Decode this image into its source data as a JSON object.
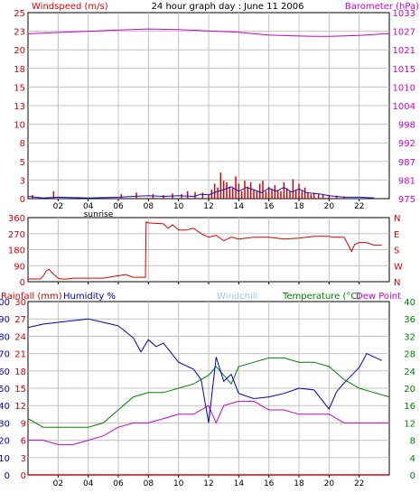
{
  "chart_data": [
    {
      "type": "line",
      "title": "24 hour graph day : June 11 2006",
      "left_label": "Windspeed (m/s)",
      "right_label": "Barometer (hPa)",
      "colors": {
        "wind": "#dd0000",
        "gust": "#1010c0",
        "baro": "#cc00cc",
        "grid": "#c0c0c0"
      },
      "x_ticks": [
        "02",
        "04",
        "06",
        "08",
        "10",
        "12",
        "14",
        "16",
        "18",
        "20",
        "22"
      ],
      "sunrise_label": "sunrise",
      "y_left_ticks": [
        "0",
        "3",
        "5",
        "8",
        "10",
        "13",
        "15",
        "18",
        "20",
        "23",
        "25"
      ],
      "y_left_range": [
        0,
        25
      ],
      "y_right_ticks": [
        "975",
        "981",
        "987",
        "992",
        "998",
        "1004",
        "1010",
        "1015",
        "1021",
        "1027",
        "1033"
      ],
      "y_right_range": [
        975,
        1033
      ],
      "barometer": {
        "x": [
          0,
          2,
          4,
          6,
          8,
          10,
          12,
          14,
          16,
          18,
          19,
          20,
          22,
          24
        ],
        "y": [
          1026.4,
          1026.8,
          1027.2,
          1027.6,
          1027.9,
          1027.7,
          1027.3,
          1026.9,
          1026.0,
          1025.7,
          1025.6,
          1025.6,
          1025.9,
          1026.5
        ]
      },
      "wind_bars": {
        "x": [
          0.3,
          1.7,
          6.2,
          7.2,
          8.3,
          9.0,
          9.6,
          10.2,
          10.6,
          11.1,
          11.6,
          12.0,
          12.2,
          12.4,
          12.6,
          12.8,
          13.0,
          13.2,
          13.4,
          13.6,
          13.8,
          14.0,
          14.2,
          14.4,
          14.6,
          14.8,
          15.0,
          15.2,
          15.4,
          15.6,
          15.8,
          16.0,
          16.2,
          16.4,
          16.6,
          16.8,
          17.0,
          17.2,
          17.4,
          17.6,
          17.8,
          18.0,
          18.2,
          18.4,
          18.6,
          18.8,
          19.0,
          19.3,
          19.6,
          20.0,
          20.5,
          21.0
        ],
        "y": [
          0.5,
          1.0,
          0.6,
          0.8,
          0.6,
          0.5,
          0.7,
          0.6,
          1.0,
          0.9,
          0.8,
          0.6,
          1.2,
          2.0,
          1.5,
          3.5,
          2.4,
          2.2,
          1.6,
          1.4,
          3.0,
          2.0,
          1.0,
          2.4,
          1.6,
          2.2,
          1.2,
          1.0,
          2.0,
          2.4,
          1.0,
          1.6,
          1.3,
          1.8,
          1.1,
          1.0,
          2.2,
          1.4,
          1.0,
          2.6,
          1.2,
          2.0,
          1.0,
          1.5,
          0.8,
          0.6,
          0.8,
          0.6,
          0.5,
          0.5,
          0.4,
          0.3
        ]
      },
      "gust_line": {
        "x": [
          0,
          1,
          2,
          4,
          6,
          7,
          8,
          9,
          10,
          11,
          11.5,
          12,
          12.5,
          13,
          13.5,
          14,
          14.5,
          15,
          15.5,
          16,
          16.5,
          17,
          17.5,
          18,
          18.5,
          19,
          19.5,
          20,
          21,
          22,
          23
        ],
        "y": [
          0.3,
          0.1,
          0.2,
          0.1,
          0.2,
          0.3,
          0.4,
          0.3,
          0.4,
          0.3,
          0.6,
          0.5,
          0.9,
          1.2,
          1.6,
          1.0,
          1.5,
          1.2,
          0.8,
          1.4,
          1.0,
          1.5,
          0.9,
          1.3,
          0.8,
          0.7,
          0.6,
          0.4,
          0.2,
          0.2,
          0.1
        ]
      }
    },
    {
      "type": "line",
      "title": "",
      "y_left_ticks": [
        "0",
        "90",
        "180",
        "270",
        "360"
      ],
      "y_left_range": [
        0,
        360
      ],
      "y_right_ticks": [
        "N",
        "W",
        "S",
        "E",
        "N"
      ],
      "color": "#dd0000",
      "direction": {
        "x": [
          0,
          0.8,
          1.0,
          1.2,
          1.4,
          1.6,
          1.8,
          2.0,
          2.2,
          2.6,
          3.0,
          5.0,
          6.5,
          7.0,
          7.8,
          7.85,
          8.0,
          9.0,
          9.3,
          9.6,
          10.0,
          10.5,
          11.0,
          11.5,
          12.0,
          12.5,
          13.0,
          13.5,
          14.0,
          15.0,
          16.0,
          17.0,
          18.0,
          19.0,
          20.0,
          20.2,
          21.0,
          21.5,
          21.7,
          22.0,
          22.5,
          23.0,
          23.5
        ],
        "y": [
          15,
          15,
          30,
          60,
          70,
          50,
          35,
          20,
          15,
          15,
          20,
          20,
          40,
          25,
          25,
          335,
          330,
          325,
          300,
          320,
          290,
          290,
          300,
          270,
          250,
          260,
          230,
          250,
          240,
          250,
          250,
          240,
          245,
          255,
          255,
          250,
          250,
          170,
          210,
          220,
          220,
          205,
          205
        ]
      }
    },
    {
      "type": "line",
      "left_label_rain": "Rainfall (mm)",
      "left_label_hum": "Humidity %",
      "center_label": "Windchill",
      "temp_label": "Temperature (°C)",
      "dew_label": "Dew Point",
      "colors": {
        "humidity": "#0000c0",
        "temperature": "#008000",
        "dewpoint": "#cc00cc",
        "rain": "#dd0000",
        "windchill": "#9ec7e8"
      },
      "y_rain_ticks": [
        "0",
        "3",
        "6",
        "9",
        "12",
        "15",
        "18",
        "21",
        "24",
        "27",
        "30"
      ],
      "y_hum_ticks": [
        "0",
        "10",
        "20",
        "30",
        "40",
        "50",
        "60",
        "70",
        "80",
        "90",
        "100"
      ],
      "y_right_ticks": [
        "0",
        "4",
        "8",
        "12",
        "16",
        "20",
        "24",
        "28",
        "32",
        "36",
        "40"
      ],
      "y_right_range": [
        0,
        40
      ],
      "humidity": {
        "x": [
          0,
          1,
          2,
          3,
          4,
          5,
          6,
          7,
          7.5,
          8,
          8.5,
          9,
          10,
          11,
          11.5,
          12,
          12.5,
          13,
          13.5,
          14,
          15,
          16,
          17,
          18,
          19,
          20,
          20.5,
          21,
          22,
          22.5,
          23,
          23.5
        ],
        "y": [
          85,
          87,
          88,
          89,
          90,
          88,
          86,
          79,
          71,
          78,
          74,
          76,
          65,
          61,
          55,
          30,
          68,
          54,
          58,
          47,
          44,
          45,
          47,
          50,
          49,
          38,
          48,
          53,
          62,
          70,
          68,
          66
        ]
      },
      "temperature": {
        "x": [
          0,
          1,
          2,
          3,
          4,
          5,
          6,
          7,
          8,
          9,
          10,
          11,
          12,
          12.5,
          13,
          13.5,
          14,
          15,
          16,
          17,
          18,
          19,
          20,
          21,
          22,
          23,
          24
        ],
        "y": [
          13,
          11,
          11,
          11,
          11,
          12,
          15,
          18,
          19,
          19,
          20,
          21,
          23,
          25,
          23,
          21,
          25,
          26,
          27,
          27,
          26,
          26,
          25,
          22,
          20,
          19,
          18
        ]
      },
      "dewpoint": {
        "x": [
          0,
          1,
          2,
          3,
          4,
          5,
          6,
          7,
          8,
          9,
          10,
          11,
          12,
          12.5,
          13,
          14,
          15,
          16,
          17,
          18,
          19,
          20,
          21,
          22,
          23,
          24
        ],
        "y": [
          8,
          8,
          7,
          7,
          8,
          9,
          11,
          12,
          12,
          13,
          14,
          14,
          16,
          12,
          16,
          17,
          17,
          15,
          15,
          14,
          14,
          14,
          12,
          12,
          12,
          12
        ]
      },
      "rainfall": {
        "x": [
          0,
          24
        ],
        "y": [
          0,
          0
        ]
      }
    }
  ]
}
